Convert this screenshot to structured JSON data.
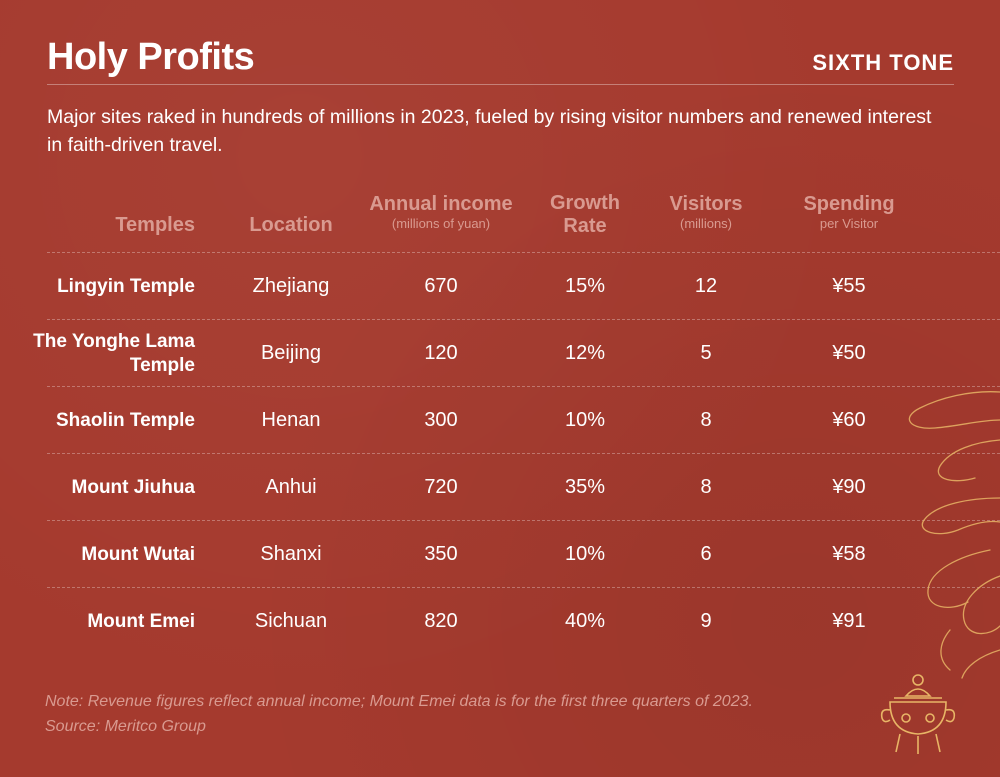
{
  "header": {
    "title": "Holy Profits",
    "brand": "SIXTH TONE",
    "subtitle": "Major sites raked in hundreds of millions in 2023, fueled by rising visitor numbers and renewed interest in faith-driven travel."
  },
  "table": {
    "columns": [
      {
        "label": "Temples",
        "sub": ""
      },
      {
        "label": "Location",
        "sub": ""
      },
      {
        "label": "Annual income",
        "sub": "(millions of yuan)"
      },
      {
        "label": "Growth Rate",
        "sub": ""
      },
      {
        "label": "Visitors",
        "sub": "(millions)"
      },
      {
        "label": "Spending",
        "sub": "per Visitor"
      }
    ],
    "rows": [
      {
        "temple": "Lingyin Temple",
        "location": "Zhejiang",
        "income": "670",
        "growth": "15%",
        "visitors": "12",
        "spending": "¥55"
      },
      {
        "temple": "The Yonghe Lama Temple",
        "location": "Beijing",
        "income": "120",
        "growth": "12%",
        "visitors": "5",
        "spending": "¥50"
      },
      {
        "temple": "Shaolin Temple",
        "location": "Henan",
        "income": "300",
        "growth": "10%",
        "visitors": "8",
        "spending": "¥60"
      },
      {
        "temple": "Mount Jiuhua",
        "location": "Anhui",
        "income": "720",
        "growth": "35%",
        "visitors": "8",
        "spending": "¥90"
      },
      {
        "temple": "Mount Wutai",
        "location": "Shanxi",
        "income": "350",
        "growth": "10%",
        "visitors": "6",
        "spending": "¥58"
      },
      {
        "temple": "Mount Emei",
        "location": "Sichuan",
        "income": "820",
        "growth": "40%",
        "visitors": "9",
        "spending": "¥91"
      }
    ]
  },
  "footer": {
    "note": "Note: Revenue figures reflect annual income; Mount Emei data is for the first three quarters of 2023.",
    "source": "Source: Meritco Group"
  },
  "decoration": {
    "icon": "incense-burner-icon",
    "smoke": "incense-smoke-swirls"
  },
  "colors": {
    "background": "#a53a2e",
    "header_text": "#d99a90",
    "accent_line": "#e8b566"
  }
}
